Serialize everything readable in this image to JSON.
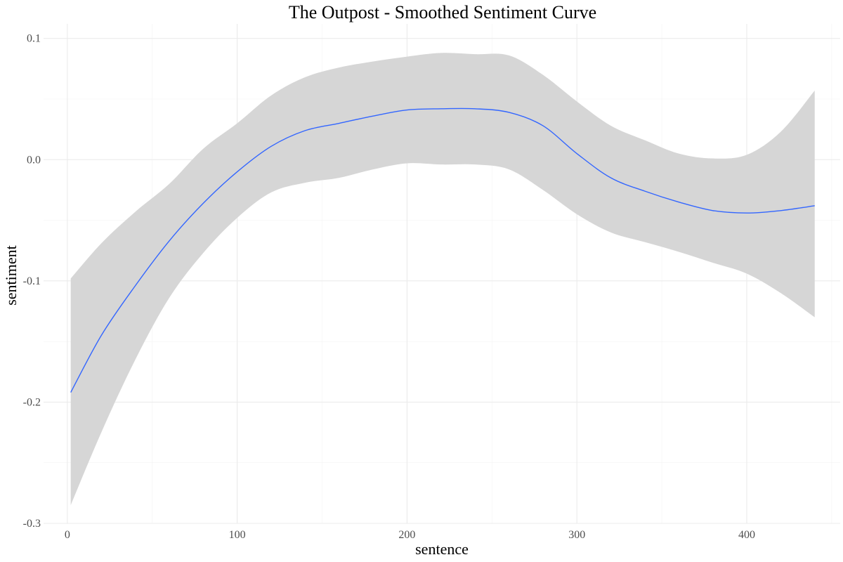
{
  "chart_data": {
    "type": "line",
    "title": "The Outpost - Smoothed Sentiment Curve",
    "xlabel": "sentence",
    "ylabel": "sentiment",
    "xlim": [
      -14,
      455
    ],
    "ylim": [
      -0.3,
      0.112
    ],
    "x_ticks": [
      0,
      100,
      200,
      300,
      400
    ],
    "x_tick_labels": [
      "0",
      "100",
      "200",
      "300",
      "400"
    ],
    "y_ticks": [
      -0.3,
      -0.2,
      -0.1,
      0.0,
      0.1
    ],
    "y_tick_labels": [
      "-0.3",
      "-0.2",
      "-0.1",
      "0.0",
      "0.1"
    ],
    "grid": true,
    "line_color": "#3366FF",
    "band_color": "#d6d6d6",
    "series": [
      {
        "x": [
          2,
          20,
          40,
          60,
          80,
          100,
          120,
          140,
          160,
          180,
          200,
          220,
          240,
          260,
          280,
          300,
          320,
          340,
          360,
          380,
          400,
          420,
          440
        ],
        "y": [
          -0.192,
          -0.145,
          -0.104,
          -0.067,
          -0.036,
          -0.01,
          0.011,
          0.024,
          0.03,
          0.036,
          0.041,
          0.042,
          0.042,
          0.039,
          0.028,
          0.005,
          -0.015,
          -0.026,
          -0.035,
          -0.042,
          -0.044,
          -0.042,
          -0.038
        ],
        "lower": [
          -0.285,
          -0.225,
          -0.165,
          -0.114,
          -0.077,
          -0.048,
          -0.027,
          -0.019,
          -0.015,
          -0.008,
          -0.003,
          -0.004,
          -0.004,
          -0.008,
          -0.025,
          -0.045,
          -0.06,
          -0.068,
          -0.076,
          -0.085,
          -0.094,
          -0.11,
          -0.13
        ],
        "upper": [
          -0.098,
          -0.069,
          -0.043,
          -0.02,
          0.009,
          0.03,
          0.053,
          0.068,
          0.076,
          0.081,
          0.085,
          0.088,
          0.087,
          0.086,
          0.07,
          0.048,
          0.028,
          0.016,
          0.005,
          0.001,
          0.004,
          0.023,
          0.057
        ]
      }
    ]
  }
}
